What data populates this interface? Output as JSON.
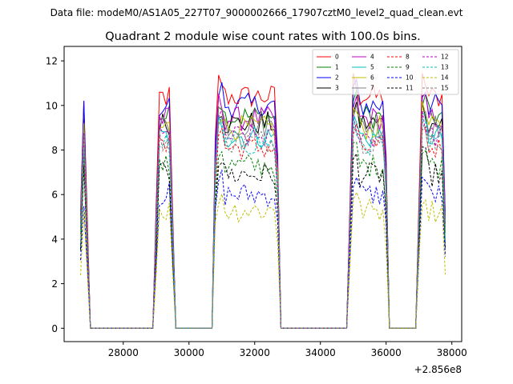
{
  "header": {
    "data_file": "Data file: modeM0/AS1A05_227T07_9000002666_17907cztM0_level2_quad_clean.evt"
  },
  "chart_data": {
    "type": "line",
    "title": "Quadrant 2 module wise count rates with 100.0s bins.",
    "xlabel": "",
    "ylabel": "",
    "x_offset_label": "+2.856e8",
    "xlim": [
      26200,
      38300
    ],
    "ylim": [
      -0.6,
      12.65
    ],
    "x_ticks": [
      28000,
      30000,
      32000,
      34000,
      36000,
      38000
    ],
    "x_tick_labels": [
      "28000",
      "30000",
      "32000",
      "34000",
      "36000",
      "38000"
    ],
    "y_ticks": [
      0,
      2,
      4,
      6,
      8,
      10,
      12
    ],
    "y_tick_labels": [
      "0",
      "2",
      "4",
      "6",
      "8",
      "10",
      "12"
    ],
    "legend_position": "top-right",
    "segments": [
      {
        "start": 26700,
        "end": 26900
      },
      {
        "start": 29000,
        "end": 29500
      },
      {
        "start": 30750,
        "end": 32750
      },
      {
        "start": 34900,
        "end": 36050
      },
      {
        "start": 37000,
        "end": 37800
      }
    ],
    "gaps": [
      [
        27000,
        28950
      ],
      [
        29600,
        30700
      ],
      [
        32800,
        34800
      ],
      [
        36100,
        36950
      ]
    ],
    "series": [
      {
        "name": "0",
        "color": "#ff0000",
        "dash": false,
        "level": 10.4
      },
      {
        "name": "1",
        "color": "#008000",
        "dash": false,
        "level": 9.5
      },
      {
        "name": "2",
        "color": "#0000ff",
        "dash": false,
        "level": 10.0
      },
      {
        "name": "3",
        "color": "#000000",
        "dash": false,
        "level": 9.2
      },
      {
        "name": "4",
        "color": "#bf00bf",
        "dash": false,
        "level": 9.4
      },
      {
        "name": "5",
        "color": "#00bfbf",
        "dash": false,
        "level": 8.6
      },
      {
        "name": "6",
        "color": "#bfbf00",
        "dash": false,
        "level": 9.0
      },
      {
        "name": "7",
        "color": "#808080",
        "dash": false,
        "level": 9.1
      },
      {
        "name": "8",
        "color": "#ff0000",
        "dash": true,
        "level": 8.1
      },
      {
        "name": "9",
        "color": "#008000",
        "dash": true,
        "level": 7.3
      },
      {
        "name": "10",
        "color": "#0000ff",
        "dash": true,
        "level": 6.0
      },
      {
        "name": "11",
        "color": "#000000",
        "dash": true,
        "level": 6.9
      },
      {
        "name": "12",
        "color": "#bf00bf",
        "dash": true,
        "level": 8.6
      },
      {
        "name": "13",
        "color": "#00bfbf",
        "dash": true,
        "level": 8.3
      },
      {
        "name": "14",
        "color": "#bfbf00",
        "dash": true,
        "level": 5.3
      },
      {
        "name": "15",
        "color": "#808080",
        "dash": true,
        "level": 8.4
      }
    ]
  }
}
